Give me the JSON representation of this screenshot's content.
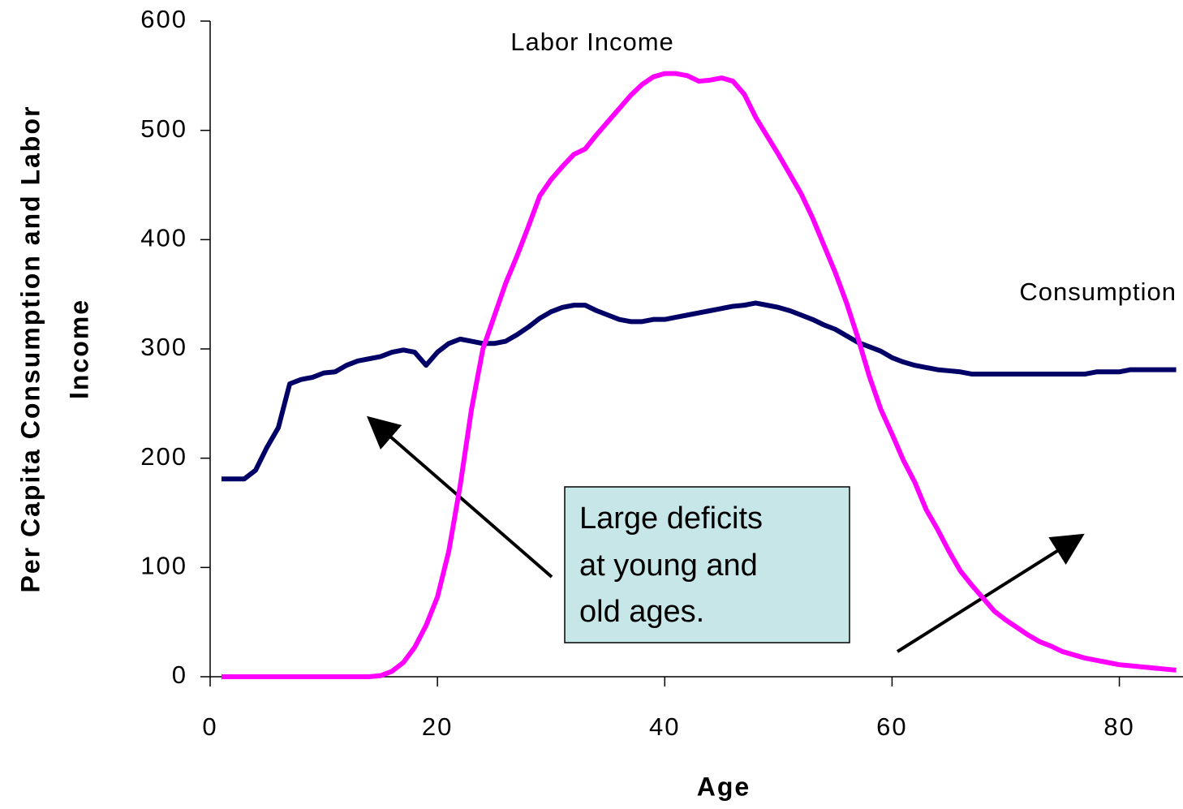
{
  "chart_data": {
    "type": "line",
    "xlabel": "Age",
    "ylabel": [
      "Per Capita Consumption and Labor",
      "Income"
    ],
    "x": [
      1,
      2,
      3,
      4,
      5,
      6,
      7,
      8,
      9,
      10,
      11,
      12,
      13,
      14,
      15,
      16,
      17,
      18,
      19,
      20,
      21,
      22,
      23,
      24,
      25,
      26,
      27,
      28,
      29,
      30,
      31,
      32,
      33,
      34,
      35,
      36,
      37,
      38,
      39,
      40,
      41,
      42,
      43,
      44,
      45,
      46,
      47,
      48,
      49,
      50,
      51,
      52,
      53,
      54,
      55,
      56,
      57,
      58,
      59,
      60,
      61,
      62,
      63,
      64,
      65,
      66,
      67,
      68,
      69,
      70,
      71,
      72,
      73,
      74,
      75,
      76,
      77,
      78,
      79,
      80,
      81,
      82,
      83,
      84,
      85
    ],
    "series": [
      {
        "name": "Consumption",
        "color": "#000066",
        "values": [
          181,
          181,
          181,
          189,
          210,
          228,
          268,
          272,
          274,
          278,
          279,
          285,
          289,
          291,
          293,
          297,
          299,
          297,
          285,
          297,
          305,
          309,
          307,
          305,
          305,
          307,
          313,
          320,
          328,
          334,
          338,
          340,
          340,
          335,
          331,
          327,
          325,
          325,
          327,
          327,
          329,
          331,
          333,
          335,
          337,
          339,
          340,
          342,
          340,
          338,
          335,
          331,
          327,
          322,
          318,
          312,
          306,
          302,
          298,
          292,
          288,
          285,
          283,
          281,
          280,
          279,
          277,
          277,
          277,
          277,
          277,
          277,
          277,
          277,
          277,
          277,
          277,
          279,
          279,
          279,
          281,
          281,
          281,
          281,
          281
        ]
      },
      {
        "name": "Labor Income",
        "color": "#ff00ff",
        "values": [
          0,
          0,
          0,
          0,
          0,
          0,
          0,
          0,
          0,
          0,
          0,
          0,
          0,
          0,
          1,
          5,
          13,
          27,
          47,
          73,
          115,
          175,
          245,
          300,
          330,
          360,
          385,
          412,
          440,
          455,
          467,
          478,
          483,
          496,
          508,
          520,
          532,
          542,
          549,
          552,
          552,
          550,
          545,
          546,
          548,
          545,
          533,
          512,
          495,
          478,
          460,
          442,
          420,
          395,
          370,
          342,
          310,
          275,
          245,
          222,
          198,
          178,
          153,
          135,
          115,
          97,
          84,
          72,
          60,
          52,
          45,
          38,
          32,
          28,
          23,
          20,
          17,
          15,
          13,
          11,
          10,
          9,
          8,
          7,
          6
        ]
      }
    ],
    "annotation": [
      "Large deficits",
      "at young and",
      "old ages."
    ],
    "xlim": [
      0,
      85.6
    ],
    "xticks": [
      0,
      20,
      40,
      60,
      80
    ],
    "ylim": [
      0,
      600
    ],
    "yticks": [
      0,
      100,
      200,
      300,
      400,
      500,
      600
    ],
    "grid": false
  }
}
